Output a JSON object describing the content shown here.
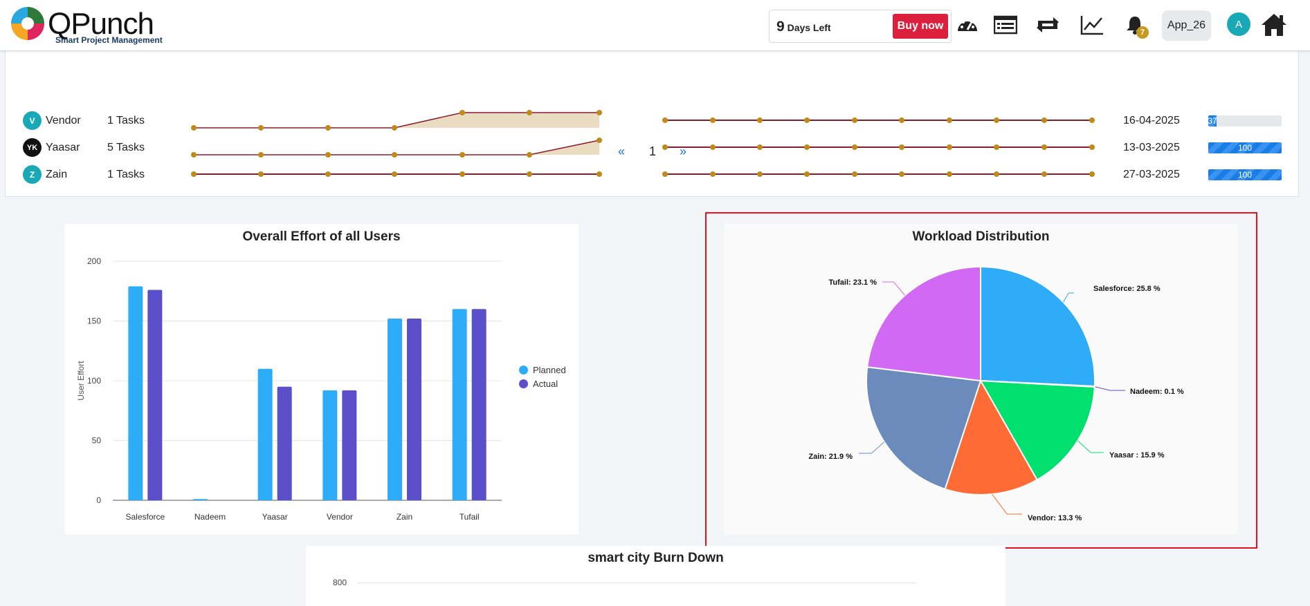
{
  "header": {
    "brand": "QPunch",
    "tagline": "Smart Project Management",
    "trial_days": "9",
    "trial_text": "Days Left",
    "buy_label": "Buy now",
    "notification_count": "7",
    "app_label": "App_26",
    "avatar_letter": "A"
  },
  "tasks": {
    "rows": [
      {
        "initials": "V",
        "avatar_color": "#19a9b6",
        "name": "Vendor",
        "tasks": "1 Tasks",
        "date": "16-04-2025",
        "progress": 37,
        "progress_label": "37"
      },
      {
        "initials": "YK",
        "avatar_color": "#111111",
        "name": "Yaasar",
        "tasks": "5 Tasks",
        "date": "13-03-2025",
        "progress": 100,
        "progress_label": "100"
      },
      {
        "initials": "Z",
        "avatar_color": "#19a9b6",
        "name": "Zain",
        "tasks": "1 Tasks",
        "date": "27-03-2025",
        "progress": 100,
        "progress_label": "100"
      }
    ],
    "pager": {
      "prev": "«",
      "current": "1",
      "next": "»"
    }
  },
  "effort_chart": {
    "title": "Overall Effort of all Users",
    "ylabel": "User Effort",
    "legend": [
      "Planned",
      "Actual"
    ],
    "colors": {
      "planned": "#2eacf7",
      "actual": "#5a4fc8"
    }
  },
  "workload_chart": {
    "title": "Workload Distribution"
  },
  "burndown_chart": {
    "title": "smart city Burn Down",
    "first_tick": "800"
  },
  "chart_data": [
    {
      "type": "bar",
      "title": "Overall Effort of all Users",
      "xlabel": "",
      "ylabel": "User Effort",
      "categories": [
        "Salesforce",
        "Nadeem",
        "Yaasar",
        "Vendor",
        "Zain",
        "Tufail"
      ],
      "series": [
        {
          "name": "Planned",
          "values": [
            179,
            1,
            110,
            92,
            152,
            160
          ]
        },
        {
          "name": "Actual",
          "values": [
            176,
            0,
            95,
            92,
            152,
            160
          ]
        }
      ],
      "ylim": [
        0,
        200
      ],
      "yticks": [
        0,
        50,
        100,
        150,
        200
      ],
      "grid": true,
      "legend": "right"
    },
    {
      "type": "pie",
      "title": "Workload Distribution",
      "slices": [
        {
          "label": "Salesforce: 25.8 %",
          "value": 25.8,
          "color": "#2eacf7"
        },
        {
          "label": "Nadeem: 0.1 %",
          "value": 0.1,
          "color": "#5a4fc8"
        },
        {
          "label": "Yaasar : 15.9 %",
          "value": 15.9,
          "color": "#00e06e"
        },
        {
          "label": "Vendor: 13.3 %",
          "value": 13.3,
          "color": "#ff6b35"
        },
        {
          "label": "Zain: 21.9 %",
          "value": 21.9,
          "color": "#6c8bbd"
        },
        {
          "label": "Tufail: 23.1 %",
          "value": 23.1,
          "color": "#d269f5"
        }
      ]
    }
  ]
}
